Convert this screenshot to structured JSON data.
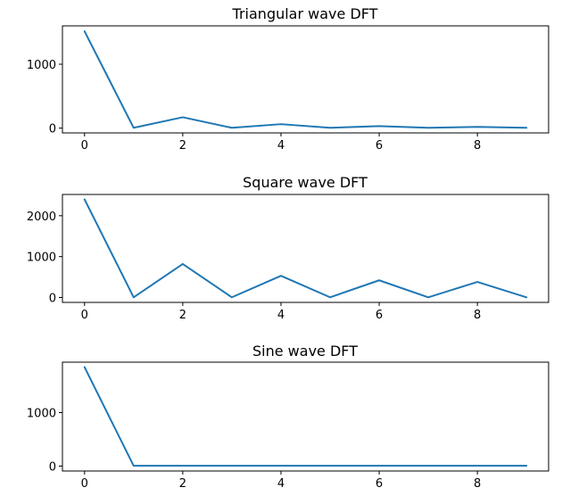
{
  "chart_data": [
    {
      "type": "line",
      "title": "Triangular wave DFT",
      "xlabel": "",
      "ylabel": "",
      "x": [
        0,
        1,
        2,
        3,
        4,
        5,
        6,
        7,
        8,
        9
      ],
      "series": [
        {
          "name": "Triangular wave DFT",
          "color": "#1f77b4",
          "values": [
            1515,
            5,
            170,
            5,
            62,
            5,
            32,
            5,
            20,
            5
          ]
        }
      ],
      "xlim": [
        -0.45,
        9.45
      ],
      "ylim": [
        -75,
        1600
      ],
      "xticks": [
        0,
        2,
        4,
        6,
        8
      ],
      "yticks": [
        0,
        1000
      ],
      "grid": false
    },
    {
      "type": "line",
      "title": "Square wave DFT",
      "xlabel": "",
      "ylabel": "",
      "x": [
        0,
        1,
        2,
        3,
        4,
        5,
        6,
        7,
        8,
        9
      ],
      "series": [
        {
          "name": "Square wave DFT",
          "color": "#1f77b4",
          "values": [
            2400,
            5,
            820,
            5,
            530,
            5,
            420,
            5,
            380,
            5
          ]
        }
      ],
      "xlim": [
        -0.45,
        9.45
      ],
      "ylim": [
        -120,
        2520
      ],
      "xticks": [
        0,
        2,
        4,
        6,
        8
      ],
      "yticks": [
        0,
        1000,
        2000
      ],
      "grid": false
    },
    {
      "type": "line",
      "title": "Sine wave DFT",
      "xlabel": "",
      "ylabel": "",
      "x": [
        0,
        1,
        2,
        3,
        4,
        5,
        6,
        7,
        8,
        9
      ],
      "series": [
        {
          "name": "Sine wave DFT",
          "color": "#1f77b4",
          "values": [
            1850,
            5,
            5,
            5,
            5,
            5,
            5,
            5,
            5,
            5
          ]
        }
      ],
      "xlim": [
        -0.45,
        9.45
      ],
      "ylim": [
        -92,
        1942
      ],
      "xticks": [
        0,
        2,
        4,
        6,
        8
      ],
      "yticks": [
        0,
        1000
      ],
      "grid": false
    }
  ]
}
